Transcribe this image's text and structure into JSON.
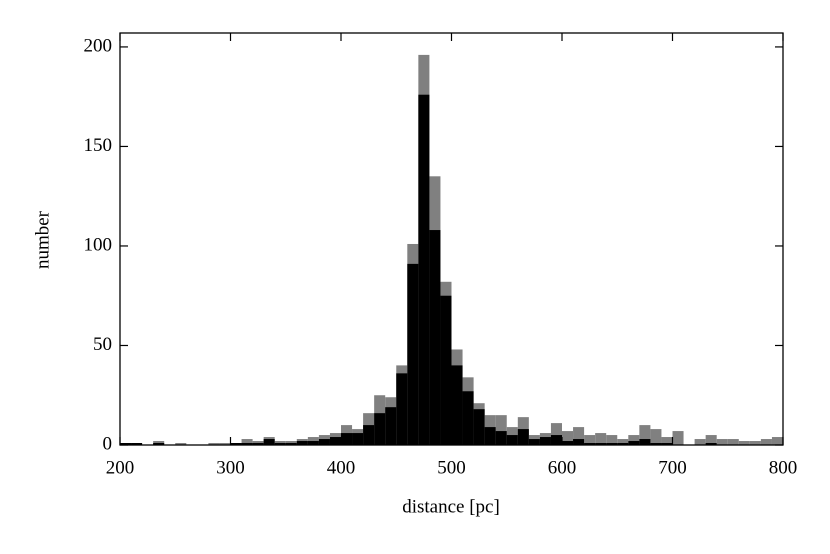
{
  "chart_data": {
    "type": "histogram",
    "xlabel": "distance [pc]",
    "ylabel": "number",
    "bins": [
      200,
      210,
      220,
      230,
      240,
      250,
      260,
      270,
      280,
      290,
      300,
      310,
      320,
      330,
      340,
      350,
      360,
      370,
      380,
      390,
      400,
      410,
      420,
      430,
      440,
      450,
      460,
      470,
      480,
      490,
      500,
      510,
      520,
      530,
      540,
      550,
      560,
      570,
      580,
      590,
      600,
      610,
      620,
      630,
      640,
      650,
      660,
      670,
      680,
      690,
      700,
      710,
      720,
      730,
      740,
      750,
      760,
      770,
      780,
      790,
      800
    ],
    "series": [
      {
        "color": "#808080",
        "values": [
          1,
          1,
          0,
          2,
          0,
          1,
          0,
          0,
          1,
          1,
          1,
          3,
          2,
          4,
          2,
          2,
          3,
          4,
          5,
          6,
          10,
          8,
          16,
          25,
          24,
          40,
          101,
          196,
          135,
          82,
          48,
          34,
          21,
          15,
          15,
          9,
          14,
          5,
          6,
          11,
          7,
          9,
          5,
          6,
          5,
          3,
          5,
          10,
          8,
          4,
          7,
          0,
          3,
          5,
          3,
          3,
          2,
          2,
          3,
          4
        ]
      },
      {
        "color": "#000000",
        "values": [
          1,
          1,
          0,
          1,
          0,
          0,
          0,
          0,
          0,
          0,
          1,
          1,
          1,
          3,
          1,
          1,
          2,
          2,
          3,
          4,
          6,
          6,
          10,
          16,
          19,
          36,
          91,
          176,
          108,
          75,
          40,
          27,
          18,
          9,
          7,
          5,
          8,
          3,
          4,
          5,
          2,
          3,
          1,
          1,
          1,
          1,
          2,
          3,
          1,
          1,
          0,
          0,
          0,
          1,
          0,
          0,
          0,
          0,
          0,
          0
        ]
      }
    ],
    "xlim": [
      200,
      800
    ],
    "ylim": [
      0,
      207
    ],
    "xticks": [
      200,
      300,
      400,
      500,
      600,
      700,
      800
    ],
    "yticks": [
      0,
      50,
      100,
      150,
      200
    ]
  }
}
